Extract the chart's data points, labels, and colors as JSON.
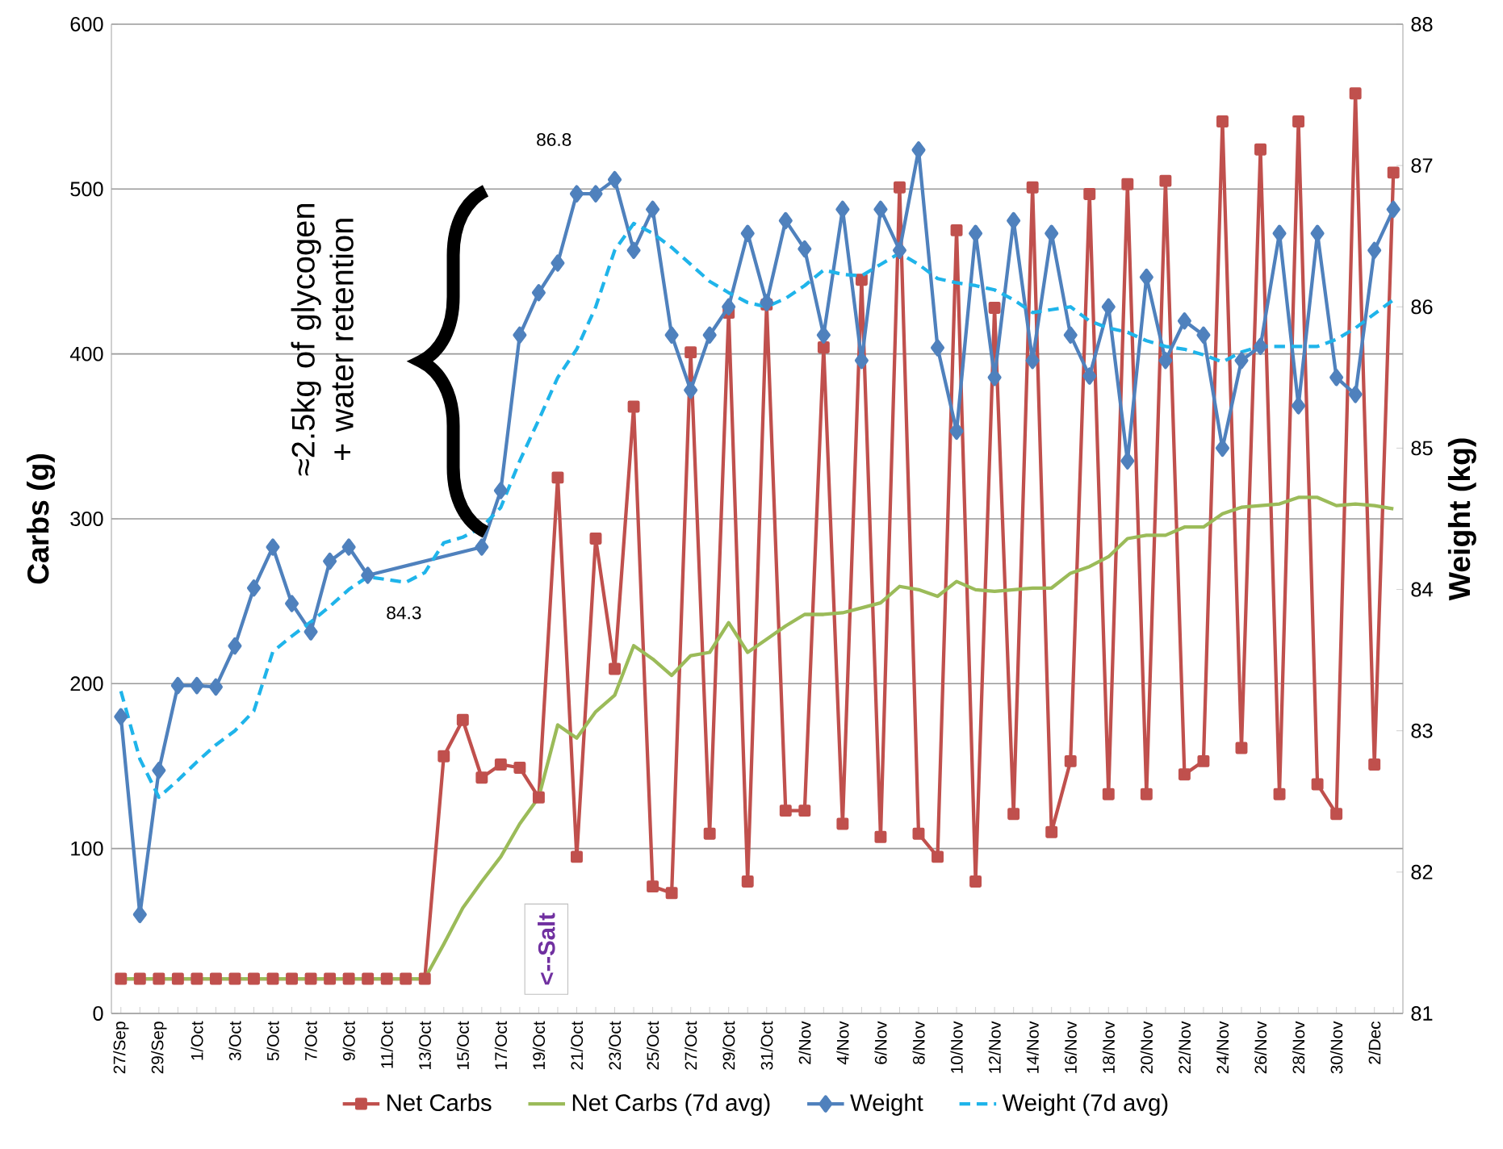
{
  "chart_data": {
    "type": "line",
    "categories": [
      "27/Sep",
      null,
      "29/Sep",
      null,
      "1/Oct",
      null,
      "3/Oct",
      null,
      "5/Oct",
      null,
      "7/Oct",
      null,
      "9/Oct",
      null,
      "11/Oct",
      null,
      "13/Oct",
      null,
      "15/Oct",
      null,
      "17/Oct",
      null,
      "19/Oct",
      null,
      "21/Oct",
      null,
      "23/Oct",
      null,
      "25/Oct",
      null,
      "27/Oct",
      null,
      "29/Oct",
      null,
      "31/Oct",
      null,
      "2/Nov",
      null,
      "4/Nov",
      null,
      "6/Nov",
      null,
      "8/Nov",
      null,
      "10/Nov",
      null,
      "12/Nov",
      null,
      "14/Nov",
      null,
      "16/Nov",
      null,
      "18/Nov",
      null,
      "20/Nov",
      null,
      "22/Nov",
      null,
      "24/Nov",
      null,
      "26/Nov",
      null,
      "28/Nov",
      null,
      "30/Nov",
      null,
      "2/Dec",
      null
    ],
    "series": [
      {
        "name": "Net Carbs",
        "color": "#c0504d",
        "marker": "square",
        "line_style": "solid",
        "values": [
          21,
          21,
          21,
          21,
          21,
          21,
          21,
          21,
          21,
          21,
          21,
          21,
          21,
          21,
          21,
          21,
          21,
          156,
          178,
          143,
          151,
          149,
          131,
          325,
          95,
          288,
          209,
          368,
          77,
          73,
          401,
          109,
          425,
          80,
          430,
          123,
          123,
          404,
          115,
          445,
          107,
          501,
          109,
          95,
          475,
          80,
          428,
          121,
          501,
          110,
          153,
          497,
          133,
          503,
          133,
          505,
          145,
          153,
          541,
          161,
          524,
          133,
          541,
          139,
          121,
          558,
          151,
          510
        ]
      },
      {
        "name": "Net Carbs (7d avg)",
        "color": "#9bbb59",
        "marker": "none",
        "line_style": "solid",
        "values": [
          21,
          21,
          21,
          21,
          21,
          21,
          21,
          21,
          21,
          21,
          21,
          21,
          21,
          21,
          21,
          21,
          21,
          42,
          64,
          80,
          95,
          115,
          131,
          175,
          167,
          183,
          193,
          223,
          215,
          205,
          217,
          219,
          237,
          219,
          227,
          235,
          242,
          242,
          243,
          246,
          249,
          259,
          257,
          253,
          262,
          257,
          256,
          257,
          258,
          258,
          267,
          271,
          277,
          288,
          290,
          290,
          295,
          295,
          303,
          307,
          308,
          309,
          313,
          313,
          308,
          309,
          308,
          306
        ]
      },
      {
        "name": "Weight",
        "color": "#4f81bd",
        "marker": "diamond",
        "line_style": "solid",
        "axis": "y2",
        "values": [
          83.1,
          81.7,
          82.72,
          83.32,
          83.32,
          83.31,
          83.6,
          84.01,
          84.3,
          83.9,
          83.7,
          84.2,
          84.3,
          84.1,
          null,
          null,
          null,
          null,
          null,
          84.3,
          84.7,
          85.8,
          86.1,
          86.31,
          86.8,
          86.8,
          86.9,
          86.4,
          86.69,
          85.8,
          85.41,
          85.8,
          86.0,
          86.52,
          86.03,
          86.61,
          86.41,
          85.8,
          86.69,
          85.62,
          86.69,
          86.4,
          87.11,
          85.71,
          85.12,
          86.52,
          85.5,
          86.61,
          85.62,
          86.52,
          85.8,
          85.51,
          86.0,
          84.91,
          86.21,
          85.62,
          85.9,
          85.8,
          85.0,
          85.62,
          85.72,
          86.52,
          85.3,
          86.52,
          85.5,
          85.38,
          86.4,
          86.69
        ]
      },
      {
        "name": "Weight (7d avg)",
        "color": "#1fb4ea",
        "marker": "none",
        "line_style": "dashed",
        "axis": "y2",
        "values": [
          83.28,
          82.8,
          82.53,
          82.65,
          82.78,
          82.9,
          83.0,
          83.14,
          83.56,
          83.67,
          83.77,
          83.88,
          84.0,
          84.09,
          84.07,
          84.05,
          84.12,
          84.33,
          84.37,
          84.44,
          84.58,
          84.91,
          85.2,
          85.5,
          85.7,
          86.0,
          86.4,
          86.59,
          86.52,
          86.42,
          86.3,
          86.18,
          86.1,
          86.03,
          86.0,
          86.06,
          86.15,
          86.26,
          86.23,
          86.22,
          86.3,
          86.38,
          86.3,
          86.2,
          86.17,
          86.15,
          86.12,
          86.05,
          85.96,
          85.98,
          86.0,
          85.9,
          85.85,
          85.82,
          85.76,
          85.72,
          85.7,
          85.66,
          85.61,
          85.68,
          85.72,
          85.72,
          85.72,
          85.72,
          85.77,
          85.85,
          85.95,
          86.05
        ]
      }
    ],
    "ylabel": "Carbs (g)",
    "y2label": "Weight (kg)",
    "ylim": [
      0,
      600
    ],
    "yticks": [
      0,
      100,
      200,
      300,
      400,
      500,
      600
    ],
    "y2lim": [
      81,
      88
    ],
    "y2ticks": [
      81,
      82,
      83,
      84,
      85,
      86,
      87,
      88
    ],
    "grid": "y",
    "legend": "bottom",
    "annotations": [
      "86.8",
      "84.3",
      "≈2.5kg of glycogen + water retention",
      "<--Salt"
    ]
  }
}
